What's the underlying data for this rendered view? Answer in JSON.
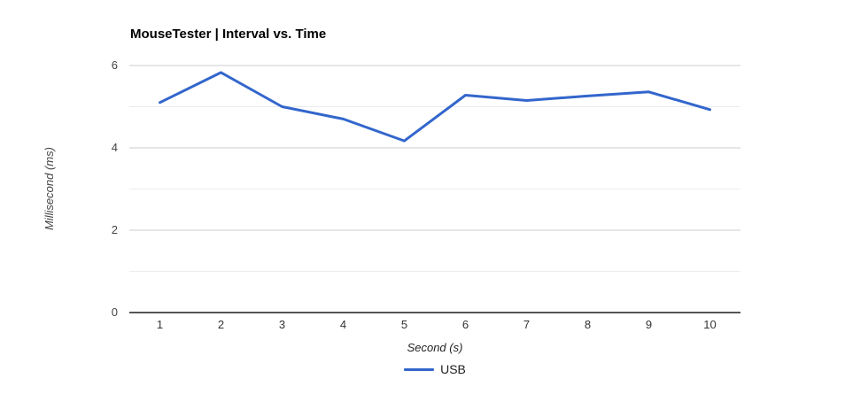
{
  "chart_data": {
    "type": "line",
    "title": "MouseTester | Interval vs. Time",
    "xlabel": "Second (s)",
    "ylabel": "Millisecond (ms)",
    "x": [
      1,
      2,
      3,
      4,
      5,
      6,
      7,
      8,
      9,
      10
    ],
    "series": [
      {
        "name": "USB",
        "color": "#3366cc",
        "values": [
          5.1,
          5.83,
          5.0,
          4.7,
          4.17,
          5.28,
          5.15,
          5.26,
          5.36,
          4.93
        ]
      }
    ],
    "xlim": [
      0.5,
      10.5
    ],
    "ylim": [
      0,
      6
    ],
    "y_ticks": [
      0,
      2,
      4,
      6
    ],
    "y_gridlines": [
      1,
      2,
      3,
      4,
      5,
      6
    ],
    "grid": true,
    "legend_position": "bottom"
  },
  "colors": {
    "line": "#3366cc",
    "grid_major": "#cccccc",
    "grid_minor": "#ebebeb",
    "baseline": "#555555",
    "tick_text": "#444444",
    "axis_title_text": "#222222",
    "title_text": "#000000"
  }
}
